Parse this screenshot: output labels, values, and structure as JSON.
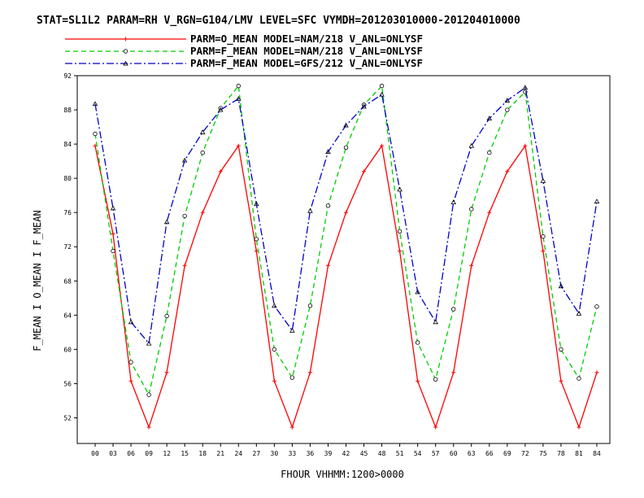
{
  "chart_data": {
    "type": "line",
    "title": "STAT=SL1L2 PARAM=RH V_RGN=G104/LMV LEVEL=SFC VYMDH=201203010000-201204010000",
    "xlabel": "FHOUR VHHMM:1200>0000",
    "ylabel": "F_MEAN I O_MEAN I F_MEAN",
    "ylim": [
      49,
      92
    ],
    "yticks": [
      52,
      56,
      60,
      64,
      68,
      72,
      76,
      80,
      84,
      88,
      92
    ],
    "ytick_labels": [
      "52",
      "56",
      "60",
      "64",
      "68",
      "72",
      "76",
      "80",
      "84",
      "88",
      "92"
    ],
    "x": [
      "00",
      "03",
      "06",
      "09",
      "12",
      "15",
      "18",
      "21",
      "24",
      "27",
      "30",
      "33",
      "36",
      "39",
      "42",
      "45",
      "48",
      "51",
      "54",
      "57",
      "60",
      "63",
      "66",
      "69",
      "72",
      "75",
      "78",
      "81",
      "84"
    ],
    "legend_position": "top",
    "grid": false,
    "series": [
      {
        "name": "PARM=O_MEAN MODEL=NAM/218 V_ANL=ONLYSF",
        "color": "#ff0000",
        "dash": "solid",
        "marker": "plus",
        "values": [
          83.8,
          73.5,
          56.3,
          50.9,
          57.3,
          69.8,
          76.0,
          80.8,
          83.8,
          71.5,
          56.3,
          50.9,
          57.3,
          69.8,
          76.0,
          80.8,
          83.8,
          71.5,
          56.3,
          50.9,
          57.3,
          69.8,
          76.0,
          80.8,
          83.8,
          71.5,
          56.3,
          50.9,
          57.3
        ]
      },
      {
        "name": "PARM=F_MEAN MODEL=NAM/218 V_ANL=ONLYSF",
        "color": "#00cc00",
        "dash": "dashed",
        "marker": "circle",
        "values": [
          85.2,
          71.5,
          58.5,
          54.7,
          63.9,
          75.6,
          83.0,
          88.2,
          90.8,
          72.9,
          60.0,
          56.7,
          65.1,
          76.8,
          83.6,
          88.6,
          90.8,
          73.8,
          60.8,
          56.5,
          64.7,
          76.4,
          83.0,
          88.0,
          90.1,
          73.2,
          60.0,
          56.6,
          65.0
        ]
      },
      {
        "name": "PARM=F_MEAN MODEL=GFS/212 V_ANL=ONLYSF",
        "color": "#0000cc",
        "dash": "dashdot",
        "marker": "triangle",
        "values": [
          88.7,
          76.5,
          63.2,
          60.7,
          74.9,
          82.1,
          85.4,
          88.0,
          89.3,
          77.0,
          65.1,
          62.2,
          76.2,
          83.1,
          86.2,
          88.4,
          89.8,
          78.7,
          66.7,
          63.2,
          77.2,
          83.8,
          87.0,
          89.1,
          90.6,
          79.7,
          67.4,
          64.2,
          77.3
        ]
      }
    ]
  }
}
